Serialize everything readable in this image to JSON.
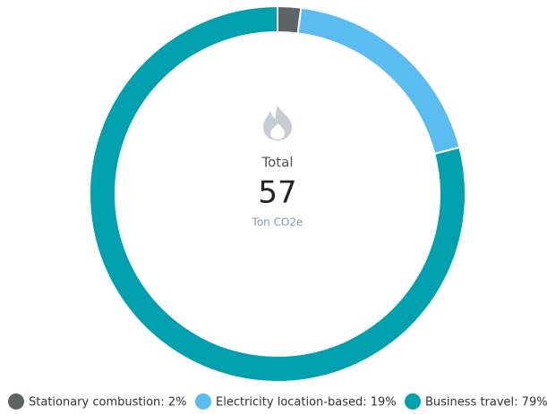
{
  "chart_data": {
    "type": "donut",
    "categories": [
      "Stationary combustion: 2%",
      "Electricity location-based: 19%",
      "Business travel: 79%"
    ],
    "values": [
      2,
      19,
      79
    ],
    "colors": [
      "#5e6366",
      "#5bbcf0",
      "#00a0ae"
    ],
    "center_label": "Total",
    "center_value": "57",
    "center_unit": "Ton CO2e",
    "legend": "bottom"
  }
}
